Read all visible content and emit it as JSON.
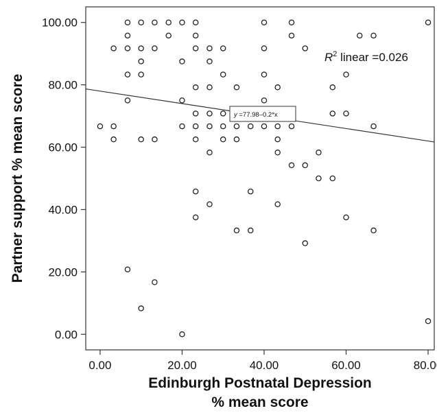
{
  "chart_data": {
    "type": "scatter",
    "title": "",
    "xlabel_lines": [
      "Edinburgh Postnatal Depression",
      "% mean score"
    ],
    "ylabel": "Partner support % mean score",
    "xlim": [
      -3.5,
      81.5
    ],
    "ylim": [
      -5,
      105
    ],
    "x_ticks": [
      0,
      20,
      40,
      60,
      80
    ],
    "y_ticks": [
      0,
      20,
      40,
      60,
      80,
      100
    ],
    "x_tick_labels": [
      "0.00",
      "20.00",
      "40.00",
      "60.00",
      "80.00"
    ],
    "y_tick_labels": [
      "0.00",
      "20.00",
      "40.00",
      "60.00",
      "80.00",
      "100.00"
    ],
    "grid": false,
    "fit_line": {
      "intercept": 77.98,
      "slope": -0.2
    },
    "annotations": {
      "r2_prefix": "R",
      "r2_sup": "2",
      "r2_suffix": " linear =0.026",
      "equation_var": "y",
      "equation_rest": " =77.98–0.2*x"
    },
    "points": [
      [
        6.7,
        100
      ],
      [
        10,
        100
      ],
      [
        13.3,
        100
      ],
      [
        16.7,
        100
      ],
      [
        20,
        100
      ],
      [
        23.3,
        100
      ],
      [
        40,
        100
      ],
      [
        46.7,
        100
      ],
      [
        80,
        100
      ],
      [
        16.7,
        95.8
      ],
      [
        23.3,
        95.8
      ],
      [
        46.7,
        95.8
      ],
      [
        63.3,
        95.8
      ],
      [
        66.7,
        95.8
      ],
      [
        6.7,
        95.8
      ],
      [
        3.3,
        91.7
      ],
      [
        6.7,
        91.7
      ],
      [
        10,
        91.7
      ],
      [
        13.3,
        91.7
      ],
      [
        23.3,
        91.7
      ],
      [
        26.7,
        91.7
      ],
      [
        30,
        91.7
      ],
      [
        40,
        91.7
      ],
      [
        50,
        91.7
      ],
      [
        10,
        87.5
      ],
      [
        20,
        87.5
      ],
      [
        26.7,
        87.5
      ],
      [
        6.7,
        83.3
      ],
      [
        10,
        83.3
      ],
      [
        30,
        83.3
      ],
      [
        40,
        83.3
      ],
      [
        60,
        83.3
      ],
      [
        23.3,
        79.2
      ],
      [
        26.7,
        79.2
      ],
      [
        33.3,
        79.2
      ],
      [
        43.3,
        79.2
      ],
      [
        56.7,
        79.2
      ],
      [
        6.7,
        75
      ],
      [
        20,
        75
      ],
      [
        40,
        75
      ],
      [
        23.3,
        70.8
      ],
      [
        26.7,
        70.8
      ],
      [
        30,
        70.8
      ],
      [
        40,
        70.8
      ],
      [
        56.7,
        70.8
      ],
      [
        60,
        70.8
      ],
      [
        0,
        66.7
      ],
      [
        3.3,
        66.7
      ],
      [
        20,
        66.7
      ],
      [
        23.3,
        66.7
      ],
      [
        26.7,
        66.7
      ],
      [
        30,
        66.7
      ],
      [
        33.3,
        66.7
      ],
      [
        36.7,
        66.7
      ],
      [
        40,
        66.7
      ],
      [
        43.3,
        66.7
      ],
      [
        46.7,
        66.7
      ],
      [
        66.7,
        66.7
      ],
      [
        3.3,
        62.5
      ],
      [
        10,
        62.5
      ],
      [
        13.3,
        62.5
      ],
      [
        23.3,
        62.5
      ],
      [
        30,
        62.5
      ],
      [
        33.3,
        62.5
      ],
      [
        43.3,
        62.5
      ],
      [
        26.7,
        58.3
      ],
      [
        43.3,
        58.3
      ],
      [
        53.3,
        58.3
      ],
      [
        46.7,
        54.2
      ],
      [
        50,
        54.2
      ],
      [
        53.3,
        50
      ],
      [
        56.7,
        50
      ],
      [
        23.3,
        45.8
      ],
      [
        36.7,
        45.8
      ],
      [
        26.7,
        41.7
      ],
      [
        43.3,
        41.7
      ],
      [
        23.3,
        37.5
      ],
      [
        60,
        37.5
      ],
      [
        33.3,
        33.3
      ],
      [
        36.7,
        33.3
      ],
      [
        66.7,
        33.3
      ],
      [
        50,
        29.2
      ],
      [
        6.7,
        20.8
      ],
      [
        13.3,
        16.7
      ],
      [
        10,
        8.3
      ],
      [
        80,
        4.2
      ],
      [
        20,
        0
      ]
    ]
  }
}
